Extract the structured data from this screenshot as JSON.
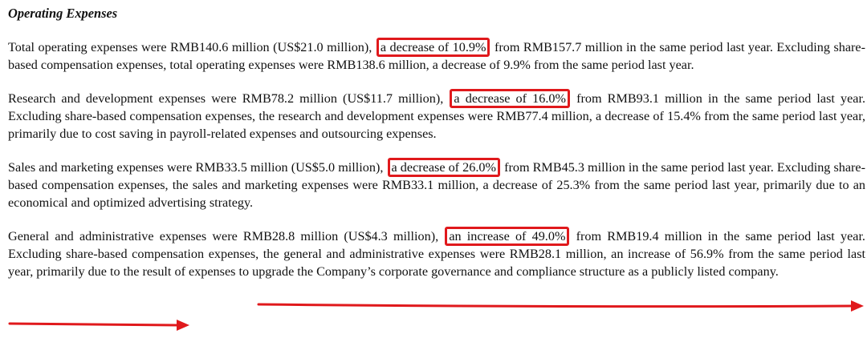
{
  "section_title": "Operating Expenses",
  "paragraphs": [
    {
      "before": "Total operating expenses were RMB140.6 million (US$21.0 million),",
      "highlight": "a decrease of 10.9%",
      "after": "from RMB157.7 million in the same period last year. Excluding share-based compensation expenses, total operating expenses were RMB138.6 million, a decrease of 9.9% from the same period last year."
    },
    {
      "before": "Research and development expenses were RMB78.2 million (US$11.7 million),",
      "highlight": "a decrease of 16.0%",
      "after": "from RMB93.1 million in the same period last year. Excluding share-based compensation expenses, the research and development expenses were RMB77.4 million, a decrease of 15.4% from the same period last year, primarily due to cost saving in payroll-related expenses and outsourcing expenses."
    },
    {
      "before": "Sales and marketing expenses were RMB33.5 million (US$5.0 million),",
      "highlight": "a decrease of 26.0%",
      "after": "from RMB45.3 million in the same period last year. Excluding share-based compensation expenses, the sales and marketing expenses were RMB33.1 million, a decrease of 25.3% from the same period last year, primarily due to an economical and optimized advertising strategy."
    },
    {
      "before": "General and administrative expenses were RMB28.8 million (US$4.3 million),",
      "highlight": "an increase of 49.0%",
      "after": "from RMB19.4 million in the same period last year. Excluding share-based compensation expenses, the general and administrative expenses were RMB28.1 million, an increase of 56.9% from the same period last year, primarily due to the result of expenses to upgrade the Company’s corporate governance and compliance structure as a publicly listed company."
    }
  ],
  "annotation_color": "#e0191c"
}
